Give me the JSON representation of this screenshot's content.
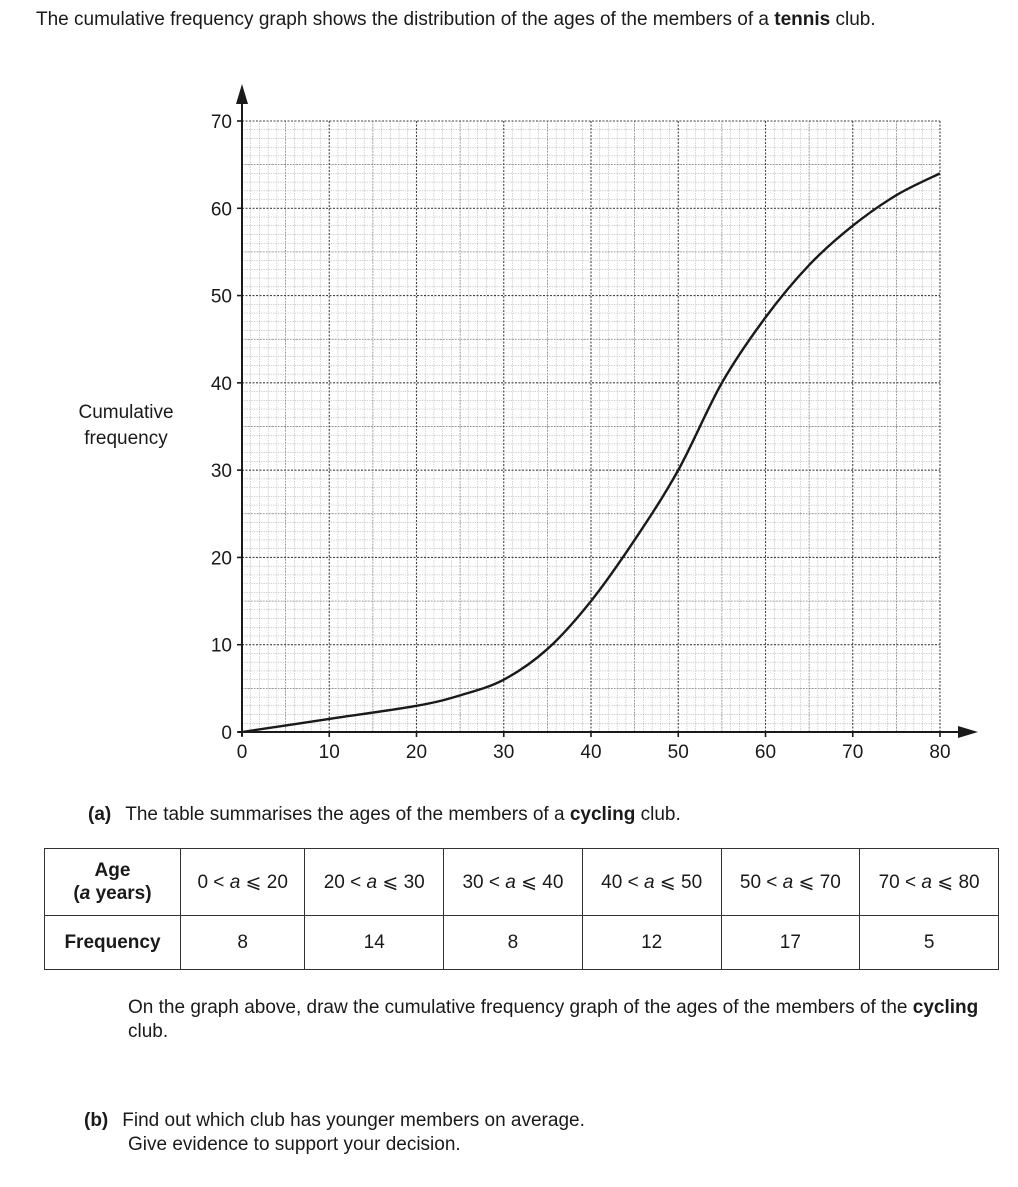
{
  "intro": {
    "text_before": "The cumulative frequency graph shows the distribution of the ages of the members of a ",
    "bold": "tennis",
    "text_after": " club."
  },
  "chart_data": {
    "type": "line",
    "title": "",
    "xlabel": "",
    "ylabel": "Cumulative frequency",
    "xlim": [
      0,
      80
    ],
    "ylim": [
      0,
      70
    ],
    "x_ticks": [
      "0",
      "10",
      "20",
      "30",
      "40",
      "50",
      "60",
      "70",
      "80"
    ],
    "y_ticks": [
      "0",
      "10",
      "20",
      "30",
      "40",
      "50",
      "60",
      "70"
    ],
    "grid": true,
    "series": [
      {
        "x": [
          0,
          10,
          20,
          25,
          30,
          35,
          40,
          45,
          50,
          55,
          60,
          65,
          70,
          75,
          80
        ],
        "y": [
          0,
          1.5,
          3,
          4.2,
          6,
          9.5,
          15,
          22,
          30,
          40,
          47.5,
          53.5,
          58,
          61.5,
          64
        ],
        "color": "#1a1a1a"
      }
    ]
  },
  "ylabel_line1": "Cumulative",
  "ylabel_line2": "frequency",
  "part_a": {
    "label": "(a)",
    "text_before": "The table summarises the ages of the members of a ",
    "bold": "cycling",
    "text_after": " club."
  },
  "table": {
    "age_header_line1": "Age",
    "age_header_var": "a",
    "age_header_rest": " years)",
    "freq_header": "Frequency",
    "intervals": [
      {
        "lo": "0",
        "hi": "20",
        "freq": "8"
      },
      {
        "lo": "20",
        "hi": "30",
        "freq": "14"
      },
      {
        "lo": "30",
        "hi": "40",
        "freq": "8"
      },
      {
        "lo": "40",
        "hi": "50",
        "freq": "12"
      },
      {
        "lo": "50",
        "hi": "70",
        "freq": "17"
      },
      {
        "lo": "70",
        "hi": "80",
        "freq": "5"
      }
    ]
  },
  "instruction": {
    "text_before": "On the graph above, draw the cumulative frequency graph of the ages of the members of the ",
    "bold": "cycling",
    "text_after": " club."
  },
  "part_b": {
    "label": "(b)",
    "line1": "Find out which club has younger members on average.",
    "line2": "Give evidence to support your decision."
  }
}
